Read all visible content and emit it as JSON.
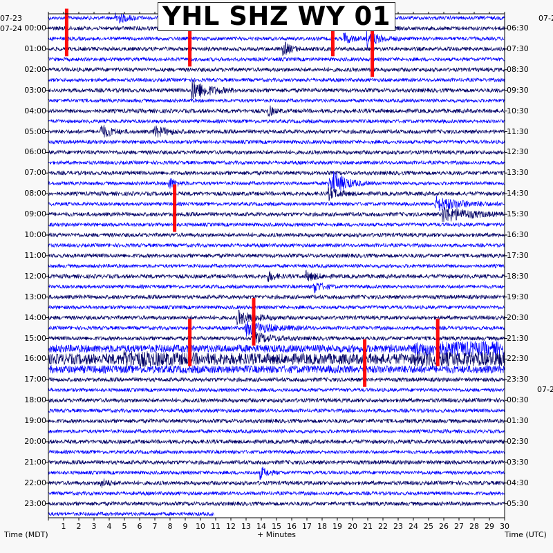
{
  "chart_data": {
    "type": "line",
    "title": "YHL SHZ WY 01",
    "xlabel": "+ Minutes",
    "left_axis_label": "Time (MDT)",
    "right_axis_label": "Time (UTC)",
    "x_range": [
      0,
      30
    ],
    "x_ticks": [
      "1",
      "2",
      "3",
      "4",
      "5",
      "6",
      "7",
      "8",
      "9",
      "10",
      "11",
      "12",
      "13",
      "14",
      "15",
      "16",
      "17",
      "18",
      "19",
      "20",
      "21",
      "22",
      "23",
      "24",
      "25",
      "26",
      "27",
      "28",
      "29",
      "30"
    ],
    "left_date_top": "07-23",
    "left_date_first": "07-24",
    "right_date_top": "07-2",
    "right_date_mid": "07-2",
    "left_time_labels": [
      "00:00",
      "01:00",
      "02:00",
      "03:00",
      "04:00",
      "05:00",
      "06:00",
      "07:00",
      "08:00",
      "09:00",
      "10:00",
      "11:00",
      "12:00",
      "13:00",
      "14:00",
      "15:00",
      "16:00",
      "17:00",
      "18:00",
      "19:00",
      "20:00",
      "21:00",
      "22:00",
      "23:00"
    ],
    "right_time_labels": [
      "06:30",
      "07:30",
      "08:30",
      "09:30",
      "10:30",
      "11:30",
      "12:30",
      "13:30",
      "14:30",
      "15:30",
      "16:30",
      "17:30",
      "18:30",
      "19:30",
      "20:30",
      "21:30",
      "22:30",
      "23:30",
      "00:30",
      "01:30",
      "02:30",
      "03:30",
      "04:30",
      "05:30"
    ],
    "trace_colors": [
      "#0000ff",
      "#000066"
    ],
    "event_color": "#ff0000",
    "events": [
      {
        "row": 1,
        "minute": 1.2
      },
      {
        "row": 1,
        "minute": 18.7
      },
      {
        "row": 3,
        "minute": 21.3
      },
      {
        "row": 2,
        "minute": 9.3
      },
      {
        "row": 18,
        "minute": 8.3
      },
      {
        "row": 29,
        "minute": 13.5
      },
      {
        "row": 31,
        "minute": 9.3
      },
      {
        "row": 33,
        "minute": 20.8
      },
      {
        "row": 31,
        "minute": 25.6
      }
    ]
  }
}
